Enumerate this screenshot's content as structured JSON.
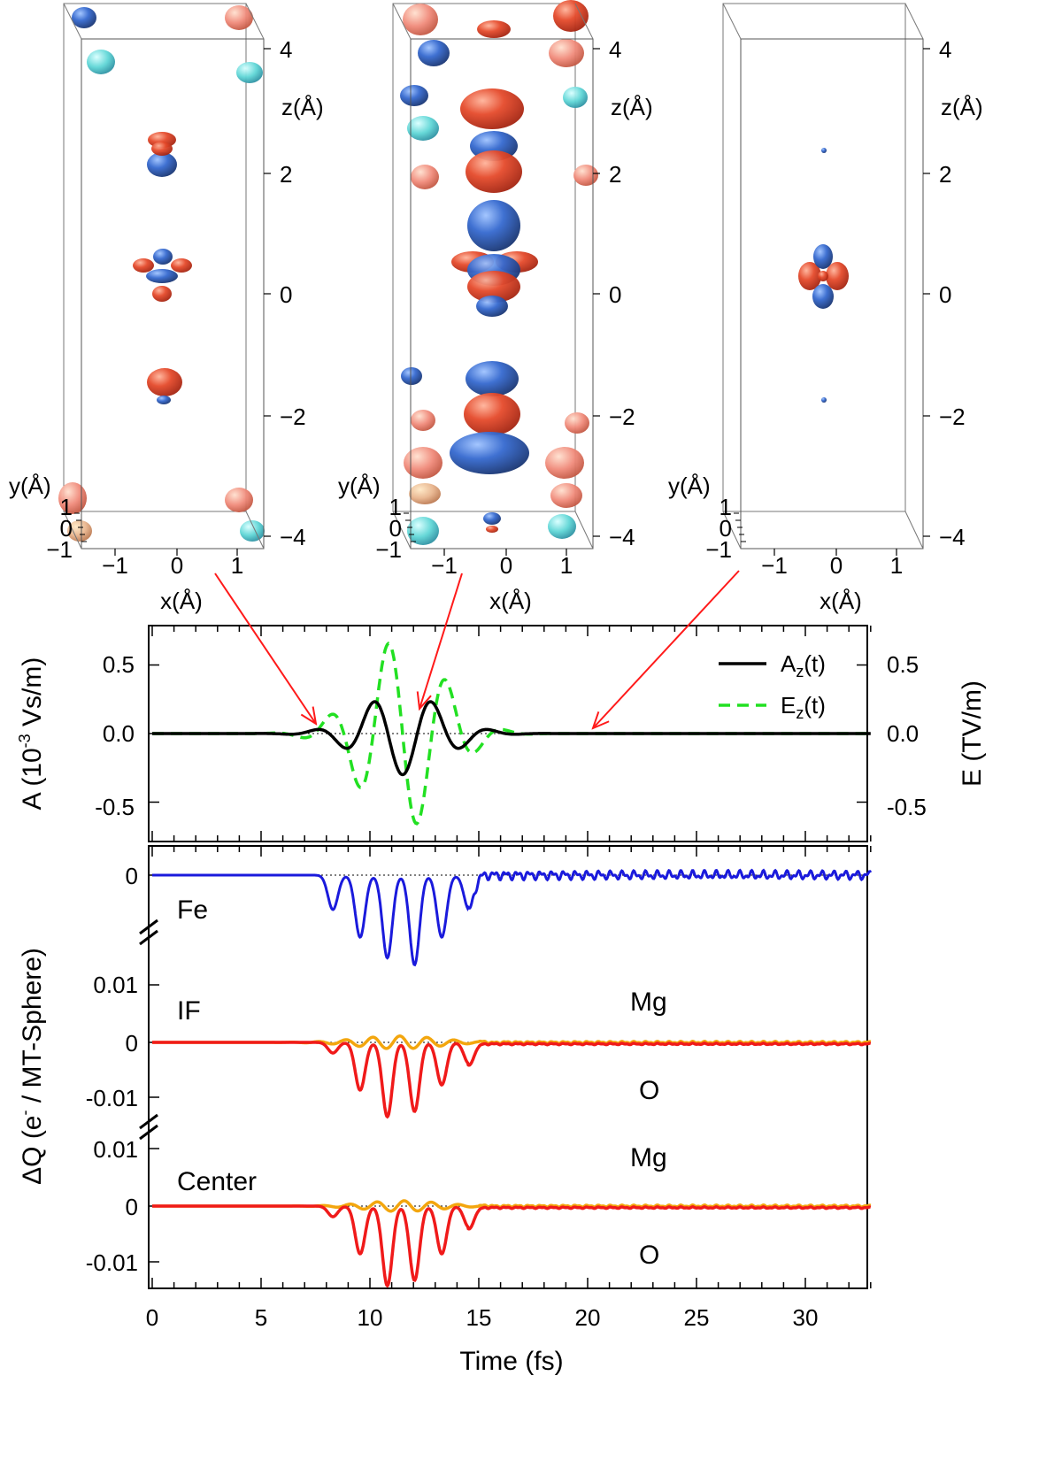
{
  "chart_data": [
    {
      "type": "isosurface",
      "panel": "top-left",
      "x_ticks": [
        "−1",
        "0",
        "1"
      ],
      "y_ticks": [
        "−1",
        "0",
        "1"
      ],
      "z_ticks": [
        "4",
        "2",
        "0",
        "−2",
        "−4"
      ],
      "xlabel": "x(Å)",
      "ylabel": "y(Å)",
      "zlabel": "z(Å)",
      "colors": {
        "positive": "#e0452a",
        "negative": "#2e63c8",
        "cyan": "#5fd6d6",
        "salmon": "#f08a7a"
      },
      "time_fs": 7.7
    },
    {
      "type": "isosurface",
      "panel": "top-middle",
      "x_ticks": [
        "−1",
        "0",
        "1"
      ],
      "y_ticks": [
        "−1",
        "0",
        "1"
      ],
      "z_ticks": [
        "4",
        "2",
        "0",
        "−2",
        "−4"
      ],
      "xlabel": "x(Å)",
      "ylabel": "y(Å)",
      "zlabel": "z(Å)",
      "time_fs": 12.2
    },
    {
      "type": "isosurface",
      "panel": "top-right",
      "x_ticks": [
        "−1",
        "0",
        "1"
      ],
      "y_ticks": [
        "−1",
        "0",
        "1"
      ],
      "z_ticks": [
        "4",
        "2",
        "0",
        "−2",
        "−4"
      ],
      "xlabel": "x(Å)",
      "ylabel": "y(Å)",
      "zlabel": "z(Å)",
      "time_fs": 20.3
    },
    {
      "type": "line",
      "panel": "field",
      "xlim": [
        0,
        33
      ],
      "ylim": [
        -0.75,
        0.75
      ],
      "y_ticks": [
        "0.5",
        "0.0",
        "-0.5"
      ],
      "y2_ticks": [
        "0.5",
        "0.0",
        "-0.5"
      ],
      "ylabel_main": "A  (10",
      "ylabel_exp": "-3",
      "ylabel_tail": " Vs/m)",
      "y2label": "E  (TV/m)",
      "legend_position": "top-right",
      "series": [
        {
          "name": "A",
          "name_sub": "z",
          "name_tail": "(t)",
          "color": "#000000",
          "style": "solid",
          "envelope_amp": 0.3,
          "carrier_period_fs": 2.7,
          "center_fs": 11.5,
          "width_fs": 2.6
        },
        {
          "name": "E",
          "name_sub": "z",
          "name_tail": "(t)",
          "color": "#22e022",
          "style": "dashed",
          "envelope_amp": 0.7,
          "carrier_period_fs": 2.7,
          "center_fs": 11.5,
          "width_fs": 2.6
        }
      ]
    },
    {
      "type": "line",
      "panel": "charge",
      "xlim": [
        0,
        33
      ],
      "x_ticks": [
        "0",
        "5",
        "10",
        "15",
        "20",
        "25",
        "30"
      ],
      "xlabel": "Time  (fs)",
      "ylabel_main": "ΔQ  (e",
      "ylabel_exp": "-",
      "ylabel_tail": " / MT-Sphere)",
      "groups": {
        "fe": {
          "label": "Fe",
          "ticks": [
            "0",
            "0.01"
          ]
        },
        "if": {
          "label": "IF",
          "ticks": [
            "0.01",
            "0",
            "-0.01"
          ],
          "labels": [
            "Mg",
            "O"
          ]
        },
        "center": {
          "label": "Center",
          "ticks": [
            "0.01",
            "0",
            "-0.01"
          ],
          "labels": [
            "Mg",
            "O"
          ]
        }
      },
      "series": [
        {
          "name": "Fe",
          "color": "#1a1adc",
          "peak_dips": [
            0.005,
            0.009,
            0.012,
            0.013,
            0.009,
            0.005
          ]
        },
        {
          "name": "Mg IF",
          "color": "#f3a60e",
          "amp": 0.0012
        },
        {
          "name": "O IF",
          "color": "#f01a1a",
          "peak_dips": [
            0.002,
            0.009,
            0.014,
            0.013,
            0.008,
            0.004
          ]
        },
        {
          "name": "Mg center",
          "color": "#f3a60e",
          "amp": 0.001
        },
        {
          "name": "O center",
          "color": "#f01a1a",
          "peak_dips": [
            0.002,
            0.009,
            0.015,
            0.014,
            0.009,
            0.004
          ]
        }
      ]
    }
  ]
}
